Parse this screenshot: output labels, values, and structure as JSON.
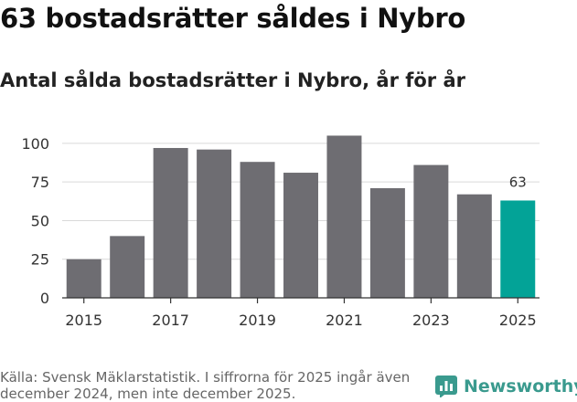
{
  "header": {
    "headline": "63 bostadsrätter såldes i Nybro",
    "subtitle": "Antal sålda bostadsrätter i Nybro, år för år"
  },
  "footer": {
    "source": "Källa: Svensk Mäklarstatistik. I siffrorna för 2025 ingår även december 2024, men inte december 2025.",
    "brand": "Newsworthy"
  },
  "colors": {
    "bar": "#6e6d72",
    "highlight": "#03a397",
    "brand": "#3a9a8e"
  },
  "chart_data": {
    "type": "bar",
    "title": "Antal sålda bostadsrätter i Nybro, år för år",
    "xlabel": "",
    "ylabel": "",
    "categories": [
      "2015",
      "2016",
      "2017",
      "2018",
      "2019",
      "2020",
      "2021",
      "2022",
      "2023",
      "2024",
      "2025"
    ],
    "values": [
      25,
      40,
      97,
      96,
      88,
      81,
      105,
      71,
      86,
      67,
      63
    ],
    "highlight_index": 10,
    "data_labels": [
      {
        "index": 10,
        "text": "63"
      }
    ],
    "x_tick_labels": [
      "2015",
      "2017",
      "2019",
      "2021",
      "2023",
      "2025"
    ],
    "y_ticks": [
      0,
      25,
      50,
      75,
      100
    ],
    "ylim": [
      0,
      110
    ],
    "grid": true
  }
}
